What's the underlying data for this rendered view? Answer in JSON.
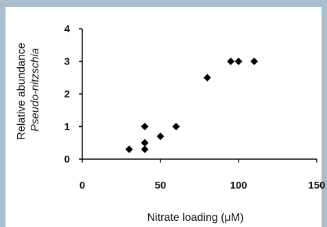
{
  "chart_data": {
    "type": "scatter",
    "x": [
      30,
      40,
      40,
      40,
      40,
      50,
      60,
      80,
      95,
      100,
      110
    ],
    "y": [
      0.3,
      0.3,
      0.5,
      0.5,
      1.0,
      0.7,
      1.0,
      2.5,
      3.0,
      3.0,
      3.0
    ],
    "xlim": [
      0,
      150
    ],
    "ylim": [
      0,
      4
    ],
    "x_ticks": [
      "0",
      "50",
      "100",
      "150"
    ],
    "y_ticks": [
      "0",
      "1",
      "2",
      "3",
      "4"
    ],
    "xlabel_prefix": "Nitrate loading (",
    "xlabel_unit": "μM",
    "xlabel_suffix": ")",
    "ylabel_line1": "Relative abundance",
    "ylabel_line2": "Pseudo-nitzschia",
    "marker": "diamond",
    "marker_color": "#000000",
    "grid": false,
    "legend": "none"
  }
}
